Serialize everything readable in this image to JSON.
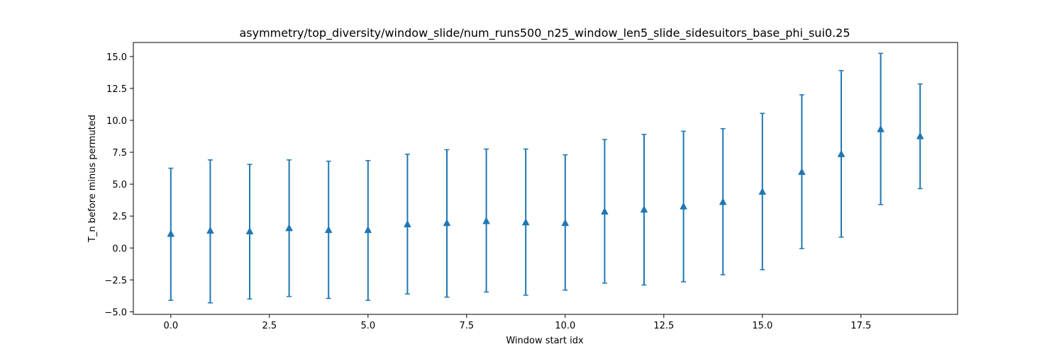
{
  "chart_data": {
    "type": "errorbar",
    "title": "asymmetry/top_diversity/window_slide/num_runs500_n25_window_len5_slide_sidesuitors_base_phi_sui0.25",
    "xlabel": "Window start idx",
    "ylabel": "T_n before minus permuted",
    "xlim": [
      -0.95,
      19.95
    ],
    "ylim": [
      -5.2,
      16.1
    ],
    "xticks": [
      0.0,
      2.5,
      5.0,
      7.5,
      10.0,
      12.5,
      15.0,
      17.5
    ],
    "xtick_labels": [
      "0.0",
      "2.5",
      "5.0",
      "7.5",
      "10.0",
      "12.5",
      "15.0",
      "17.5"
    ],
    "yticks": [
      -5.0,
      -2.5,
      0.0,
      2.5,
      5.0,
      7.5,
      10.0,
      12.5,
      15.0
    ],
    "ytick_labels": [
      "−5.0",
      "−2.5",
      "0.0",
      "2.5",
      "5.0",
      "7.5",
      "10.0",
      "12.5",
      "15.0"
    ],
    "grid": false,
    "color": "#1f77b4",
    "marker": "triangle-up",
    "points": [
      {
        "x": 0,
        "y": 1.1,
        "lower": -4.1,
        "upper": 6.25
      },
      {
        "x": 1,
        "y": 1.35,
        "lower": -4.3,
        "upper": 6.9
      },
      {
        "x": 2,
        "y": 1.3,
        "lower": -4.0,
        "upper": 6.55
      },
      {
        "x": 3,
        "y": 1.55,
        "lower": -3.8,
        "upper": 6.9
      },
      {
        "x": 4,
        "y": 1.4,
        "lower": -3.95,
        "upper": 6.8
      },
      {
        "x": 5,
        "y": 1.4,
        "lower": -4.1,
        "upper": 6.85
      },
      {
        "x": 6,
        "y": 1.85,
        "lower": -3.6,
        "upper": 7.35
      },
      {
        "x": 7,
        "y": 1.95,
        "lower": -3.85,
        "upper": 7.7
      },
      {
        "x": 8,
        "y": 2.1,
        "lower": -3.45,
        "upper": 7.75
      },
      {
        "x": 9,
        "y": 2.0,
        "lower": -3.7,
        "upper": 7.75
      },
      {
        "x": 10,
        "y": 1.95,
        "lower": -3.3,
        "upper": 7.3
      },
      {
        "x": 11,
        "y": 2.85,
        "lower": -2.75,
        "upper": 8.5
      },
      {
        "x": 12,
        "y": 3.0,
        "lower": -2.9,
        "upper": 8.9
      },
      {
        "x": 13,
        "y": 3.25,
        "lower": -2.65,
        "upper": 9.15
      },
      {
        "x": 14,
        "y": 3.6,
        "lower": -2.1,
        "upper": 9.35
      },
      {
        "x": 15,
        "y": 4.4,
        "lower": -1.7,
        "upper": 10.55
      },
      {
        "x": 16,
        "y": 5.95,
        "lower": -0.05,
        "upper": 12.0
      },
      {
        "x": 17,
        "y": 7.35,
        "lower": 0.85,
        "upper": 13.9
      },
      {
        "x": 18,
        "y": 9.3,
        "lower": 3.4,
        "upper": 15.25
      },
      {
        "x": 19,
        "y": 8.75,
        "lower": 4.65,
        "upper": 12.85
      }
    ]
  }
}
